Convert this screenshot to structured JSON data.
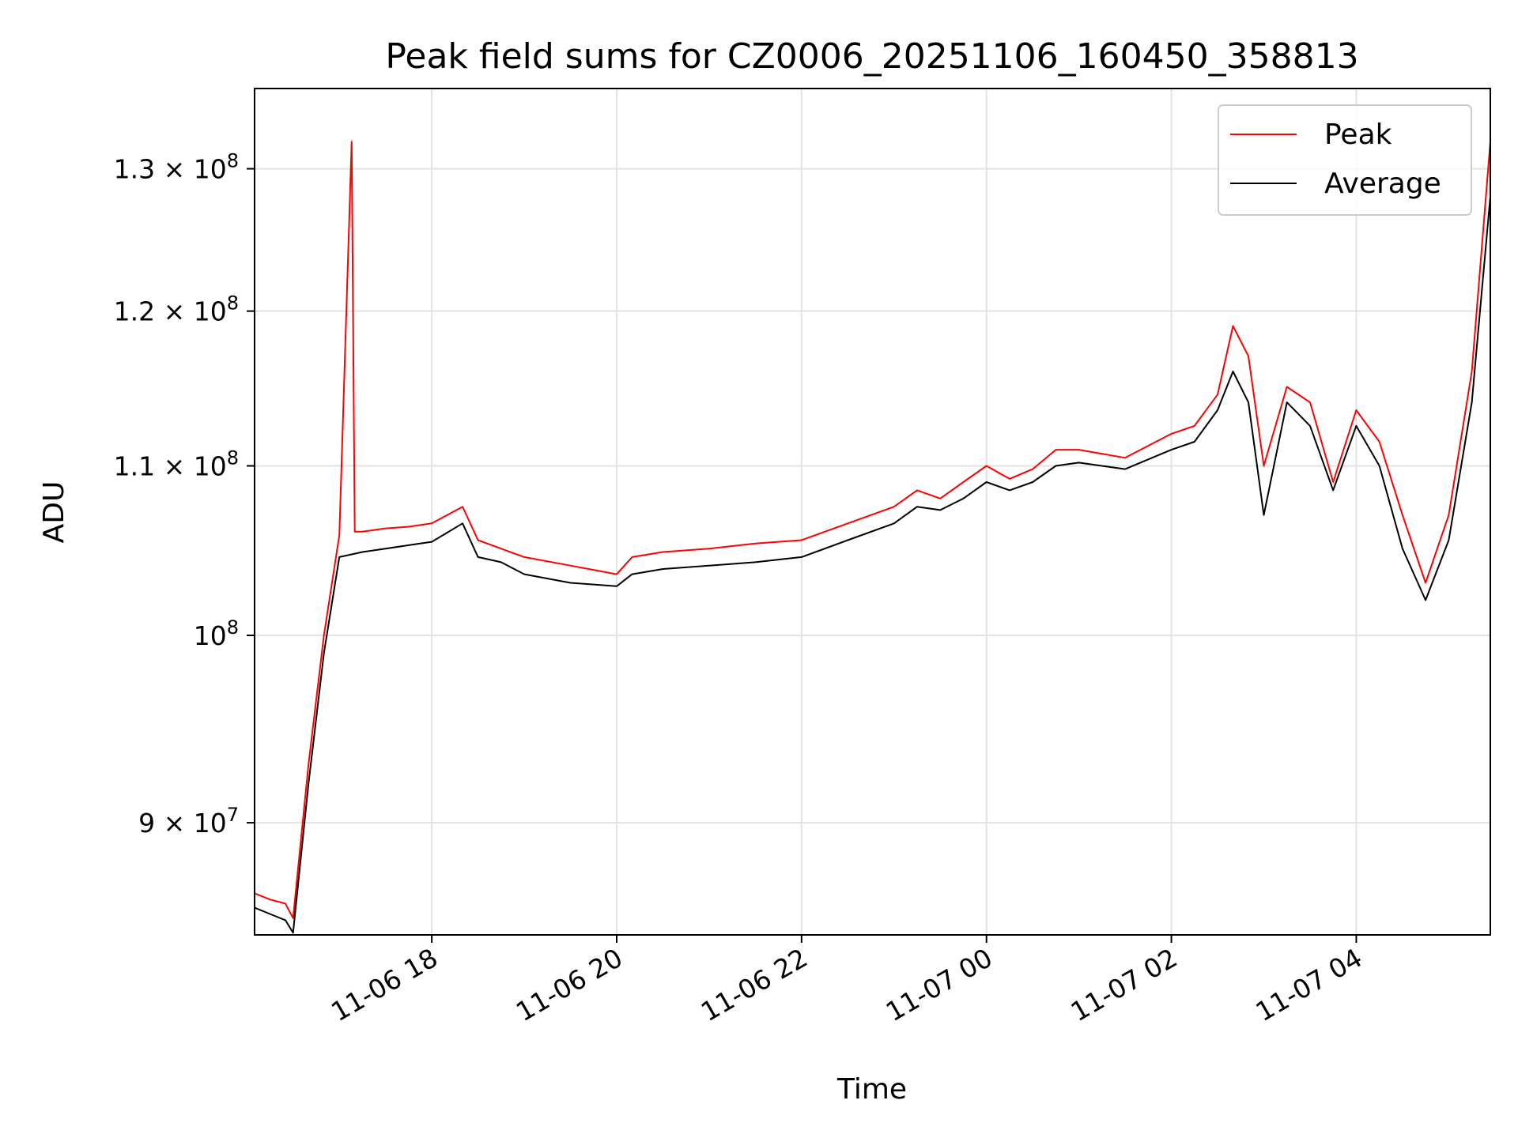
{
  "chart_data": {
    "type": "line",
    "title": "Peak field sums for CZ0006_20251106_160450_358813",
    "xlabel": "Time",
    "ylabel": "ADU",
    "yscale": "log",
    "xlim": [
      "2025-11-06 16:05",
      "2025-11-07 05:27"
    ],
    "ylim": [
      84500000,
      136000000
    ],
    "grid": true,
    "legend": "top-right",
    "x_ticks": [
      {
        "label": "11-06 18",
        "t": "2025-11-06 18:00"
      },
      {
        "label": "11-06 20",
        "t": "2025-11-06 20:00"
      },
      {
        "label": "11-06 22",
        "t": "2025-11-06 22:00"
      },
      {
        "label": "11-07 00",
        "t": "2025-11-07 00:00"
      },
      {
        "label": "11-07 02",
        "t": "2025-11-07 02:00"
      },
      {
        "label": "11-07 04",
        "t": "2025-11-07 04:00"
      }
    ],
    "y_ticks": [
      {
        "mantissa": "9",
        "exp": "7",
        "value": 90000000
      },
      {
        "mantissa": "",
        "exp": "8",
        "value": 100000000
      },
      {
        "mantissa": "1.1",
        "exp": "8",
        "value": 110000000
      },
      {
        "mantissa": "1.2",
        "exp": "8",
        "value": 120000000
      },
      {
        "mantissa": "1.3",
        "exp": "8",
        "value": 130000000
      }
    ],
    "series": [
      {
        "name": "Peak",
        "color": "#ff0000",
        "x": [
          "2025-11-06 16:05",
          "2025-11-06 16:15",
          "2025-11-06 16:25",
          "2025-11-06 16:30",
          "2025-11-06 16:40",
          "2025-11-06 16:50",
          "2025-11-06 17:00",
          "2025-11-06 17:08",
          "2025-11-06 17:10",
          "2025-11-06 17:15",
          "2025-11-06 17:30",
          "2025-11-06 17:45",
          "2025-11-06 18:00",
          "2025-11-06 18:20",
          "2025-11-06 18:30",
          "2025-11-06 18:45",
          "2025-11-06 19:00",
          "2025-11-06 19:30",
          "2025-11-06 20:00",
          "2025-11-06 20:10",
          "2025-11-06 20:30",
          "2025-11-06 21:00",
          "2025-11-06 21:30",
          "2025-11-06 22:00",
          "2025-11-06 22:30",
          "2025-11-06 23:00",
          "2025-11-06 23:15",
          "2025-11-06 23:30",
          "2025-11-06 23:45",
          "2025-11-07 00:00",
          "2025-11-07 00:15",
          "2025-11-07 00:30",
          "2025-11-07 00:45",
          "2025-11-07 01:00",
          "2025-11-07 01:30",
          "2025-11-07 02:00",
          "2025-11-07 02:15",
          "2025-11-07 02:30",
          "2025-11-07 02:40",
          "2025-11-07 02:50",
          "2025-11-07 03:00",
          "2025-11-07 03:15",
          "2025-11-07 03:30",
          "2025-11-07 03:45",
          "2025-11-07 04:00",
          "2025-11-07 04:15",
          "2025-11-07 04:30",
          "2025-11-07 04:45",
          "2025-11-07 05:00",
          "2025-11-07 05:15",
          "2025-11-07 05:27"
        ],
        "values": [
          86500000,
          86200000,
          86000000,
          85300000,
          93000000,
          100000000,
          105800000,
          132000000,
          106000000,
          106000000,
          106200000,
          106300000,
          106500000,
          107500000,
          105500000,
          105000000,
          104500000,
          104000000,
          103500000,
          104500000,
          104800000,
          105000000,
          105300000,
          105500000,
          106500000,
          107500000,
          108500000,
          108000000,
          109000000,
          110000000,
          109200000,
          109800000,
          111000000,
          111000000,
          110500000,
          112000000,
          112500000,
          114500000,
          119000000,
          117000000,
          110000000,
          115000000,
          114000000,
          109000000,
          113500000,
          111500000,
          107000000,
          103000000,
          107000000,
          116000000,
          132000000
        ]
      },
      {
        "name": "Average",
        "color": "#000000",
        "x": [
          "2025-11-06 16:05",
          "2025-11-06 16:15",
          "2025-11-06 16:25",
          "2025-11-06 16:30",
          "2025-11-06 16:40",
          "2025-11-06 16:50",
          "2025-11-06 17:00",
          "2025-11-06 17:15",
          "2025-11-06 17:30",
          "2025-11-06 17:45",
          "2025-11-06 18:00",
          "2025-11-06 18:20",
          "2025-11-06 18:30",
          "2025-11-06 18:45",
          "2025-11-06 19:00",
          "2025-11-06 19:30",
          "2025-11-06 20:00",
          "2025-11-06 20:10",
          "2025-11-06 20:30",
          "2025-11-06 21:00",
          "2025-11-06 21:30",
          "2025-11-06 22:00",
          "2025-11-06 22:30",
          "2025-11-06 23:00",
          "2025-11-06 23:15",
          "2025-11-06 23:30",
          "2025-11-06 23:45",
          "2025-11-07 00:00",
          "2025-11-07 00:15",
          "2025-11-07 00:30",
          "2025-11-07 00:45",
          "2025-11-07 01:00",
          "2025-11-07 01:30",
          "2025-11-07 02:00",
          "2025-11-07 02:15",
          "2025-11-07 02:30",
          "2025-11-07 02:40",
          "2025-11-07 02:50",
          "2025-11-07 03:00",
          "2025-11-07 03:15",
          "2025-11-07 03:30",
          "2025-11-07 03:45",
          "2025-11-07 04:00",
          "2025-11-07 04:15",
          "2025-11-07 04:30",
          "2025-11-07 04:45",
          "2025-11-07 05:00",
          "2025-11-07 05:15",
          "2025-11-07 05:27"
        ],
        "values": [
          85800000,
          85500000,
          85200000,
          84600000,
          92000000,
          99000000,
          104500000,
          104800000,
          105000000,
          105200000,
          105400000,
          106500000,
          104500000,
          104200000,
          103500000,
          103000000,
          102800000,
          103500000,
          103800000,
          104000000,
          104200000,
          104500000,
          105500000,
          106500000,
          107500000,
          107300000,
          108000000,
          109000000,
          108500000,
          109000000,
          110000000,
          110200000,
          109800000,
          111000000,
          111500000,
          113500000,
          116000000,
          114000000,
          107000000,
          114000000,
          112500000,
          108500000,
          112500000,
          110000000,
          105000000,
          102000000,
          105500000,
          114000000,
          128000000
        ]
      }
    ]
  }
}
